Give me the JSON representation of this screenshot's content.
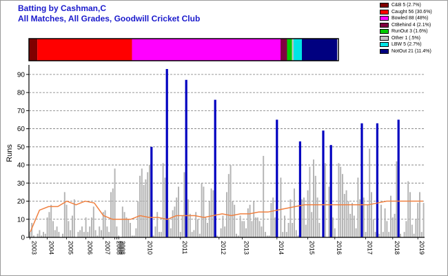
{
  "title_line1": "Batting by Cashman,C",
  "title_line2": "All Matches, All Grades, Goodwill Cricket Club",
  "legend": [
    {
      "label": "C&B 5 (2.7%)",
      "color": "#800000"
    },
    {
      "label": "Caught 56 (30.6%)",
      "color": "#ff0000"
    },
    {
      "label": "Bowled 88 (48%)",
      "color": "#ff00ff"
    },
    {
      "label": "CtBehind 4 (2.1%)",
      "color": "#800040"
    },
    {
      "label": "RunOut 3 (1.6%)",
      "color": "#00cc00"
    },
    {
      "label": "Other 1 (.5%)",
      "color": "#c0c0c0"
    },
    {
      "label": "LBW 5 (2.7%)",
      "color": "#00e5e5"
    },
    {
      "label": "NotOut 21 (11.4%)",
      "color": "#000080"
    }
  ],
  "chart_data": [
    {
      "type": "bar",
      "title": "Dismissal breakdown",
      "segments": [
        {
          "name": "C&B",
          "count": 5,
          "percent": 2.7
        },
        {
          "name": "Caught",
          "count": 56,
          "percent": 30.6
        },
        {
          "name": "Bowled",
          "count": 88,
          "percent": 48
        },
        {
          "name": "CtBehind",
          "count": 4,
          "percent": 2.1
        },
        {
          "name": "RunOut",
          "count": 3,
          "percent": 1.6
        },
        {
          "name": "Other",
          "count": 1,
          "percent": 0.5
        },
        {
          "name": "LBW",
          "count": 5,
          "percent": 2.7
        },
        {
          "name": "NotOut",
          "count": 21,
          "percent": 11.4
        }
      ]
    },
    {
      "type": "bar",
      "ylabel": "Runs",
      "ylim": [
        0,
        93
      ],
      "yticks": [
        0,
        10,
        20,
        30,
        40,
        50,
        60,
        70,
        80,
        90
      ],
      "grid": true,
      "xticks": [
        {
          "label": "2003",
          "index": 0
        },
        {
          "label": "2004",
          "index": 9
        },
        {
          "label": "2005",
          "index": 19
        },
        {
          "label": "2006",
          "index": 29
        },
        {
          "label": "2007",
          "index": 38
        },
        {
          "label": "2008",
          "index": 44
        },
        {
          "label": "2008",
          "index": 45
        },
        {
          "label": "2008",
          "index": 46
        },
        {
          "label": "2010",
          "index": 60
        },
        {
          "label": "2011",
          "index": 78
        },
        {
          "label": "2012",
          "index": 98
        },
        {
          "label": "2013",
          "index": 110
        },
        {
          "label": "2014",
          "index": 128
        },
        {
          "label": "2015",
          "index": 144
        },
        {
          "label": "2016",
          "index": 158
        },
        {
          "label": "2017",
          "index": 174
        },
        {
          "label": "2018",
          "index": 188
        },
        {
          "label": "2019",
          "index": 201
        }
      ],
      "series": [
        {
          "name": "Innings",
          "values": [
            3,
            8,
            1,
            0,
            2,
            4,
            1,
            3,
            2,
            11,
            14,
            18,
            9,
            4,
            6,
            3,
            0,
            2,
            25,
            18,
            9,
            4,
            12,
            21,
            0,
            3,
            4,
            6,
            3,
            11,
            3,
            6,
            11,
            17,
            4,
            1,
            6,
            4,
            14,
            15,
            6,
            3,
            25,
            27,
            38,
            6,
            1,
            0,
            17,
            14,
            11,
            10,
            8,
            1,
            1,
            5,
            20,
            34,
            38,
            29,
            32,
            36,
            40,
            21,
            1,
            6,
            14,
            3,
            3,
            41,
            33,
            22,
            10,
            5,
            15,
            17,
            22,
            28,
            3,
            12,
            36,
            41,
            21,
            13,
            3,
            4,
            14,
            10,
            2,
            30,
            28,
            11,
            8,
            20,
            27,
            26,
            17,
            1,
            0,
            5,
            12,
            6,
            25,
            35,
            40,
            20,
            18,
            2,
            1,
            12,
            9,
            9,
            5,
            16,
            18,
            9,
            20,
            11,
            11,
            9,
            6,
            45,
            3,
            1,
            1,
            19,
            22,
            11,
            2,
            0,
            33,
            3,
            12,
            3,
            8,
            21,
            8,
            27,
            4,
            1,
            45,
            21,
            22,
            7,
            26,
            39,
            14,
            43,
            34,
            22,
            8,
            0,
            11,
            41,
            0,
            28,
            34,
            11,
            5,
            0,
            41,
            39,
            35,
            24,
            26,
            20,
            13,
            19,
            12,
            5,
            33,
            21,
            3,
            22,
            3,
            18,
            49,
            25,
            10,
            3,
            20,
            2,
            18,
            3,
            16,
            9,
            3,
            23,
            11,
            13,
            42,
            13,
            2,
            0,
            3,
            9,
            31,
            25,
            7,
            2,
            10,
            19,
            25,
            3,
            19
          ],
          "notout_indices": [
            63,
            71,
            81,
            96,
            128,
            140,
            152,
            156,
            172,
            180,
            191
          ],
          "notout_values": [
            50,
            93,
            87,
            76,
            65,
            53,
            59,
            51,
            63,
            63,
            65
          ]
        },
        {
          "name": "Average",
          "values": [
            3,
            15,
            17,
            17,
            20,
            18,
            20,
            19,
            12,
            10,
            10,
            10,
            12,
            11,
            11,
            10,
            12,
            12,
            12,
            11,
            12,
            13,
            12,
            13,
            13,
            14,
            14,
            15,
            16,
            17,
            18,
            18,
            18,
            18,
            18,
            18,
            18,
            18,
            19,
            20,
            20,
            20,
            20,
            20
          ]
        }
      ]
    }
  ]
}
